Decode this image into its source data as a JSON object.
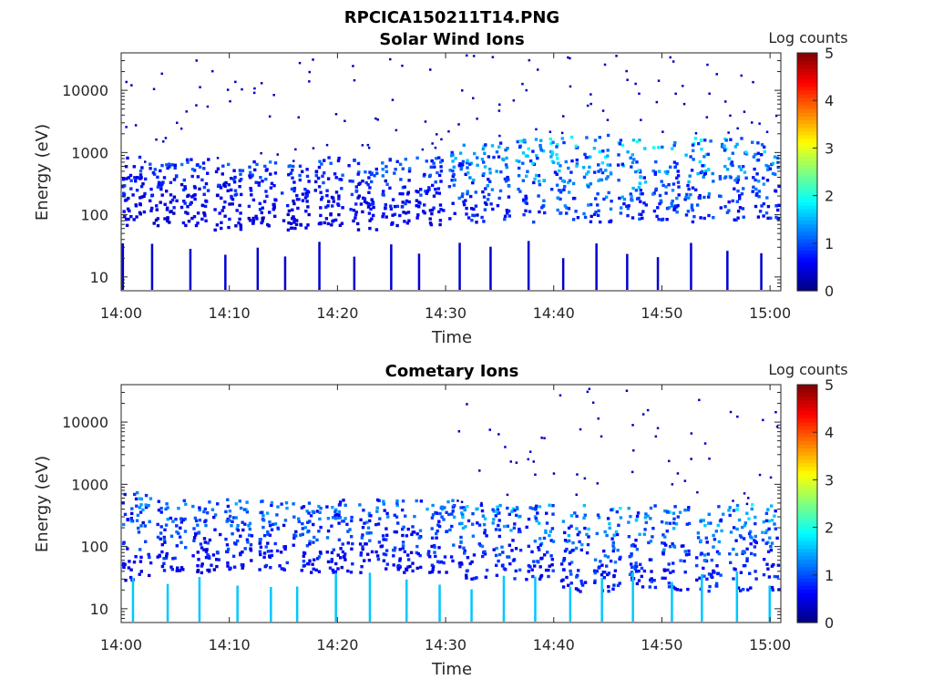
{
  "figure_title": "RPCICA150211T14.PNG",
  "chart_data": [
    {
      "type": "heatmap",
      "title": "Solar Wind Ions",
      "xlabel": "Time",
      "ylabel": "Energy (eV)",
      "x_range": [
        "14:00",
        "15:01"
      ],
      "x_tick_labels": [
        "14:00",
        "14:10",
        "14:20",
        "14:30",
        "14:40",
        "14:50",
        "15:00"
      ],
      "y_scale": "log",
      "y_range": [
        6,
        40000
      ],
      "y_tick_labels": [
        "10",
        "100",
        "1000",
        "10000"
      ],
      "colorbar": {
        "label": "Log counts",
        "range": [
          0,
          5
        ],
        "tick_labels": [
          "0",
          "1",
          "2",
          "3",
          "4",
          "5"
        ],
        "colormap": "jet"
      },
      "bursts": [
        {
          "t": 0.3,
          "lo": 70,
          "hi": 900,
          "peak": 1.2
        },
        {
          "t": 3.2,
          "lo": 70,
          "hi": 700,
          "peak": 1.2
        },
        {
          "t": 6.2,
          "lo": 70,
          "hi": 900,
          "peak": 1.3
        },
        {
          "t": 9.3,
          "lo": 60,
          "hi": 700,
          "peak": 1.2
        },
        {
          "t": 12.4,
          "lo": 70,
          "hi": 800,
          "peak": 1.3
        },
        {
          "t": 15.5,
          "lo": 60,
          "hi": 700,
          "peak": 1.2
        },
        {
          "t": 18.6,
          "lo": 70,
          "hi": 900,
          "peak": 1.3
        },
        {
          "t": 21.7,
          "lo": 60,
          "hi": 800,
          "peak": 1.3
        },
        {
          "t": 24.8,
          "lo": 70,
          "hi": 900,
          "peak": 1.4
        },
        {
          "t": 27.9,
          "lo": 70,
          "hi": 900,
          "peak": 1.4
        },
        {
          "t": 31.0,
          "lo": 80,
          "hi": 1400,
          "peak": 1.9
        },
        {
          "t": 34.0,
          "lo": 80,
          "hi": 1500,
          "peak": 1.9
        },
        {
          "t": 37.2,
          "lo": 80,
          "hi": 1800,
          "peak": 2.1
        },
        {
          "t": 40.3,
          "lo": 80,
          "hi": 2000,
          "peak": 2.2
        },
        {
          "t": 43.4,
          "lo": 80,
          "hi": 2000,
          "peak": 2.2
        },
        {
          "t": 46.6,
          "lo": 80,
          "hi": 2000,
          "peak": 2.3
        },
        {
          "t": 49.7,
          "lo": 80,
          "hi": 1800,
          "peak": 2.1
        },
        {
          "t": 52.8,
          "lo": 80,
          "hi": 1800,
          "peak": 2.1
        },
        {
          "t": 55.9,
          "lo": 80,
          "hi": 1800,
          "peak": 2.0
        },
        {
          "t": 59.0,
          "lo": 80,
          "hi": 1800,
          "peak": 2.0
        }
      ]
    },
    {
      "type": "heatmap",
      "title": "Cometary Ions",
      "xlabel": "Time",
      "ylabel": "Energy (eV)",
      "x_range": [
        "14:00",
        "15:01"
      ],
      "x_tick_labels": [
        "14:00",
        "14:10",
        "14:20",
        "14:30",
        "14:40",
        "14:50",
        "15:00"
      ],
      "y_scale": "log",
      "y_range": [
        6,
        40000
      ],
      "y_tick_labels": [
        "10",
        "100",
        "1000",
        "10000"
      ],
      "colorbar": {
        "label": "Log counts",
        "range": [
          0,
          5
        ],
        "tick_labels": [
          "0",
          "1",
          "2",
          "3",
          "4",
          "5"
        ],
        "colormap": "jet"
      },
      "bursts": [
        {
          "t": 0.8,
          "lo": 30,
          "hi": 800,
          "peak": 1.6
        },
        {
          "t": 4.0,
          "lo": 40,
          "hi": 600,
          "peak": 1.6
        },
        {
          "t": 7.2,
          "lo": 40,
          "hi": 600,
          "peak": 1.5
        },
        {
          "t": 10.3,
          "lo": 40,
          "hi": 600,
          "peak": 1.6
        },
        {
          "t": 13.4,
          "lo": 40,
          "hi": 600,
          "peak": 1.6
        },
        {
          "t": 16.5,
          "lo": 40,
          "hi": 600,
          "peak": 1.7
        },
        {
          "t": 19.6,
          "lo": 40,
          "hi": 600,
          "peak": 1.6
        },
        {
          "t": 22.7,
          "lo": 40,
          "hi": 600,
          "peak": 1.6
        },
        {
          "t": 25.8,
          "lo": 40,
          "hi": 600,
          "peak": 1.6
        },
        {
          "t": 28.9,
          "lo": 40,
          "hi": 600,
          "peak": 1.7
        },
        {
          "t": 31.9,
          "lo": 30,
          "hi": 500,
          "peak": 1.8
        },
        {
          "t": 35.0,
          "lo": 30,
          "hi": 500,
          "peak": 1.9
        },
        {
          "t": 38.1,
          "lo": 30,
          "hi": 500,
          "peak": 1.8
        },
        {
          "t": 41.3,
          "lo": 20,
          "hi": 500,
          "peak": 1.9
        },
        {
          "t": 44.4,
          "lo": 20,
          "hi": 500,
          "peak": 1.9
        },
        {
          "t": 47.5,
          "lo": 20,
          "hi": 500,
          "peak": 1.9
        },
        {
          "t": 50.6,
          "lo": 20,
          "hi": 500,
          "peak": 1.8
        },
        {
          "t": 53.7,
          "lo": 20,
          "hi": 500,
          "peak": 1.9
        },
        {
          "t": 56.8,
          "lo": 20,
          "hi": 500,
          "peak": 1.9
        },
        {
          "t": 59.8,
          "lo": 20,
          "hi": 500,
          "peak": 1.8
        }
      ]
    }
  ]
}
